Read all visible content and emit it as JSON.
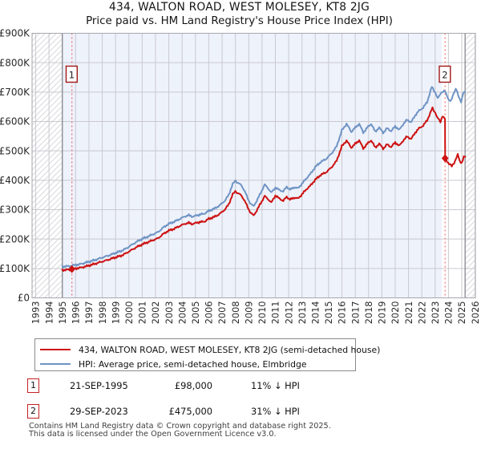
{
  "title": {
    "line1": "434, WALTON ROAD, WEST MOLESEY, KT8 2JG",
    "line2": "Price paid vs. HM Land Registry's House Price Index (HPI)"
  },
  "chart_data": {
    "type": "line",
    "title": "Price paid vs. HPI",
    "x_axis": {
      "tick_years": [
        1993,
        1994,
        1995,
        1996,
        1997,
        1998,
        1999,
        2000,
        2001,
        2002,
        2003,
        2004,
        2005,
        2006,
        2007,
        2008,
        2009,
        2010,
        2011,
        2012,
        2013,
        2014,
        2015,
        2016,
        2017,
        2018,
        2019,
        2020,
        2021,
        2022,
        2023,
        2024,
        2025,
        2026
      ],
      "range": [
        1992.73,
        2026.05
      ],
      "data_start_year": 1995.0,
      "hpi_band_end_year": 2023.5,
      "series_end_year": 2025.25
    },
    "y_axis": {
      "tick_labels": [
        "£0",
        "£100K",
        "£200K",
        "£300K",
        "£400K",
        "£500K",
        "£600K",
        "£700K",
        "£800K",
        "£900K"
      ],
      "tick_values_k": [
        0,
        100,
        200,
        300,
        400,
        500,
        600,
        700,
        800,
        900
      ],
      "range_k": [
        0,
        900
      ],
      "grid": true
    },
    "series": [
      {
        "name": "434, WALTON ROAD, WEST MOLESEY, KT8 2JG (semi-detached house)",
        "color": "#cc1111",
        "points": [
          [
            1995.0,
            94
          ],
          [
            1995.3,
            96
          ],
          [
            1995.55,
            95
          ],
          [
            1995.72,
            98
          ],
          [
            1996.0,
            100
          ],
          [
            1996.3,
            102
          ],
          [
            1996.6,
            105
          ],
          [
            1997.0,
            110
          ],
          [
            1997.4,
            115
          ],
          [
            1997.8,
            121
          ],
          [
            1998.2,
            126
          ],
          [
            1998.6,
            132
          ],
          [
            1999.0,
            138
          ],
          [
            1999.4,
            143
          ],
          [
            1999.8,
            152
          ],
          [
            2000.2,
            163
          ],
          [
            2000.6,
            173
          ],
          [
            2001.0,
            182
          ],
          [
            2001.4,
            189
          ],
          [
            2001.8,
            196
          ],
          [
            2002.2,
            203
          ],
          [
            2002.6,
            218
          ],
          [
            2003.0,
            229
          ],
          [
            2003.4,
            235
          ],
          [
            2003.8,
            244
          ],
          [
            2004.2,
            252
          ],
          [
            2004.5,
            255
          ],
          [
            2004.8,
            251
          ],
          [
            2005.1,
            256
          ],
          [
            2005.4,
            258
          ],
          [
            2005.7,
            260
          ],
          [
            2006.0,
            269
          ],
          [
            2006.4,
            275
          ],
          [
            2006.8,
            285
          ],
          [
            2007.2,
            300
          ],
          [
            2007.5,
            318
          ],
          [
            2007.8,
            353
          ],
          [
            2008.0,
            362
          ],
          [
            2008.2,
            356
          ],
          [
            2008.45,
            348
          ],
          [
            2008.7,
            330
          ],
          [
            2009.0,
            300
          ],
          [
            2009.2,
            287
          ],
          [
            2009.37,
            280
          ],
          [
            2009.6,
            297
          ],
          [
            2009.9,
            322
          ],
          [
            2010.2,
            346
          ],
          [
            2010.45,
            336
          ],
          [
            2010.7,
            324
          ],
          [
            2011.0,
            348
          ],
          [
            2011.3,
            338
          ],
          [
            2011.6,
            330
          ],
          [
            2011.85,
            344
          ],
          [
            2012.1,
            334
          ],
          [
            2012.4,
            341
          ],
          [
            2012.7,
            338
          ],
          [
            2013.0,
            352
          ],
          [
            2013.3,
            368
          ],
          [
            2013.6,
            380
          ],
          [
            2014.0,
            402
          ],
          [
            2014.4,
            418
          ],
          [
            2014.8,
            427
          ],
          [
            2015.2,
            443
          ],
          [
            2015.6,
            466
          ],
          [
            2016.0,
            516
          ],
          [
            2016.35,
            535
          ],
          [
            2016.7,
            511
          ],
          [
            2017.0,
            524
          ],
          [
            2017.3,
            536
          ],
          [
            2017.6,
            508
          ],
          [
            2017.9,
            524
          ],
          [
            2018.2,
            536
          ],
          [
            2018.5,
            511
          ],
          [
            2018.8,
            524
          ],
          [
            2019.1,
            508
          ],
          [
            2019.4,
            522
          ],
          [
            2019.7,
            513
          ],
          [
            2020.0,
            529
          ],
          [
            2020.3,
            517
          ],
          [
            2020.6,
            535
          ],
          [
            2020.9,
            549
          ],
          [
            2021.2,
            540
          ],
          [
            2021.5,
            562
          ],
          [
            2021.8,
            577
          ],
          [
            2022.1,
            586
          ],
          [
            2022.4,
            604
          ],
          [
            2022.8,
            646
          ],
          [
            2023.0,
            630
          ],
          [
            2023.2,
            610
          ],
          [
            2023.4,
            600
          ],
          [
            2023.55,
            618
          ],
          [
            2023.74,
            607
          ],
          [
            2023.75,
            475
          ],
          [
            2023.9,
            465
          ],
          [
            2024.05,
            455
          ],
          [
            2024.25,
            448
          ],
          [
            2024.5,
            465
          ],
          [
            2024.7,
            488
          ],
          [
            2024.85,
            466
          ],
          [
            2025.0,
            458
          ],
          [
            2025.15,
            478
          ],
          [
            2025.25,
            480
          ]
        ]
      },
      {
        "name": "HPI: Average price, semi-detached house, Elmbridge",
        "color": "#6f94c4",
        "points": [
          [
            1995.0,
            106
          ],
          [
            1995.3,
            108
          ],
          [
            1995.55,
            107
          ],
          [
            1995.72,
            110
          ],
          [
            1996.0,
            112
          ],
          [
            1996.3,
            114
          ],
          [
            1996.6,
            118
          ],
          [
            1997.0,
            123
          ],
          [
            1997.4,
            128
          ],
          [
            1997.8,
            134
          ],
          [
            1998.2,
            140
          ],
          [
            1998.6,
            146
          ],
          [
            1999.0,
            153
          ],
          [
            1999.4,
            159
          ],
          [
            1999.8,
            168
          ],
          [
            2000.2,
            180
          ],
          [
            2000.6,
            191
          ],
          [
            2001.0,
            201
          ],
          [
            2001.4,
            208
          ],
          [
            2001.8,
            216
          ],
          [
            2002.2,
            224
          ],
          [
            2002.6,
            240
          ],
          [
            2003.0,
            252
          ],
          [
            2003.4,
            259
          ],
          [
            2003.8,
            268
          ],
          [
            2004.2,
            277
          ],
          [
            2004.5,
            281
          ],
          [
            2004.8,
            276
          ],
          [
            2005.1,
            281
          ],
          [
            2005.4,
            284
          ],
          [
            2005.7,
            287
          ],
          [
            2006.0,
            296
          ],
          [
            2006.4,
            303
          ],
          [
            2006.8,
            314
          ],
          [
            2007.2,
            330
          ],
          [
            2007.5,
            350
          ],
          [
            2007.8,
            388
          ],
          [
            2008.0,
            398
          ],
          [
            2008.2,
            391
          ],
          [
            2008.45,
            383
          ],
          [
            2008.7,
            363
          ],
          [
            2009.0,
            330
          ],
          [
            2009.2,
            318
          ],
          [
            2009.37,
            312
          ],
          [
            2009.6,
            330
          ],
          [
            2009.9,
            357
          ],
          [
            2010.2,
            385
          ],
          [
            2010.45,
            373
          ],
          [
            2010.7,
            358
          ],
          [
            2011.0,
            375
          ],
          [
            2011.3,
            367
          ],
          [
            2011.6,
            362
          ],
          [
            2011.85,
            378
          ],
          [
            2012.1,
            368
          ],
          [
            2012.4,
            376
          ],
          [
            2012.7,
            373
          ],
          [
            2013.0,
            388
          ],
          [
            2013.3,
            405
          ],
          [
            2013.6,
            420
          ],
          [
            2014.0,
            445
          ],
          [
            2014.4,
            462
          ],
          [
            2014.8,
            472
          ],
          [
            2015.2,
            490
          ],
          [
            2015.6,
            515
          ],
          [
            2016.0,
            570
          ],
          [
            2016.35,
            592
          ],
          [
            2016.7,
            565
          ],
          [
            2017.0,
            579
          ],
          [
            2017.3,
            592
          ],
          [
            2017.6,
            562
          ],
          [
            2017.9,
            579
          ],
          [
            2018.2,
            592
          ],
          [
            2018.5,
            565
          ],
          [
            2018.8,
            579
          ],
          [
            2019.1,
            562
          ],
          [
            2019.4,
            577
          ],
          [
            2019.7,
            567
          ],
          [
            2020.0,
            584
          ],
          [
            2020.3,
            571
          ],
          [
            2020.6,
            591
          ],
          [
            2020.9,
            606
          ],
          [
            2021.2,
            597
          ],
          [
            2021.5,
            621
          ],
          [
            2021.8,
            637
          ],
          [
            2022.1,
            647
          ],
          [
            2022.4,
            666
          ],
          [
            2022.75,
            718
          ],
          [
            2023.0,
            699
          ],
          [
            2023.2,
            678
          ],
          [
            2023.45,
            699
          ],
          [
            2023.75,
            703
          ],
          [
            2023.95,
            681
          ],
          [
            2024.15,
            666
          ],
          [
            2024.35,
            691
          ],
          [
            2024.55,
            712
          ],
          [
            2024.75,
            687
          ],
          [
            2024.95,
            666
          ],
          [
            2025.1,
            694
          ],
          [
            2025.25,
            700
          ]
        ]
      }
    ],
    "sale_markers": [
      {
        "label": "1",
        "year": 1995.72,
        "price_k": 98
      },
      {
        "label": "2",
        "year": 2023.747,
        "price_k": 475
      }
    ]
  },
  "legend": {
    "items": [
      {
        "label": "434, WALTON ROAD, WEST MOLESEY, KT8 2JG (semi-detached house)",
        "color": "#cc1111"
      },
      {
        "label": "HPI: Average price, semi-detached house, Elmbridge",
        "color": "#6f94c4"
      }
    ]
  },
  "transactions": [
    {
      "num": "1",
      "date": "21-SEP-1995",
      "price": "£98,000",
      "hpi_diff": "11% ↓ HPI"
    },
    {
      "num": "2",
      "date": "29-SEP-2023",
      "price": "£475,000",
      "hpi_diff": "31% ↓ HPI"
    }
  ],
  "footer": {
    "line1": "Contains HM Land Registry data © Crown copyright and database right 2025.",
    "line2": "This data is licensed under the Open Government Licence v3.0."
  },
  "colors": {
    "plot_bg": "#eef2fb",
    "grid": "#c9c9d0",
    "spine": "#a6a6ad",
    "band_edge": "#87878f",
    "hatch": "#d9d9de",
    "sale_line": "#f07070",
    "marker_box_border": "#a01818",
    "axis_text": "#2a2a2a"
  }
}
